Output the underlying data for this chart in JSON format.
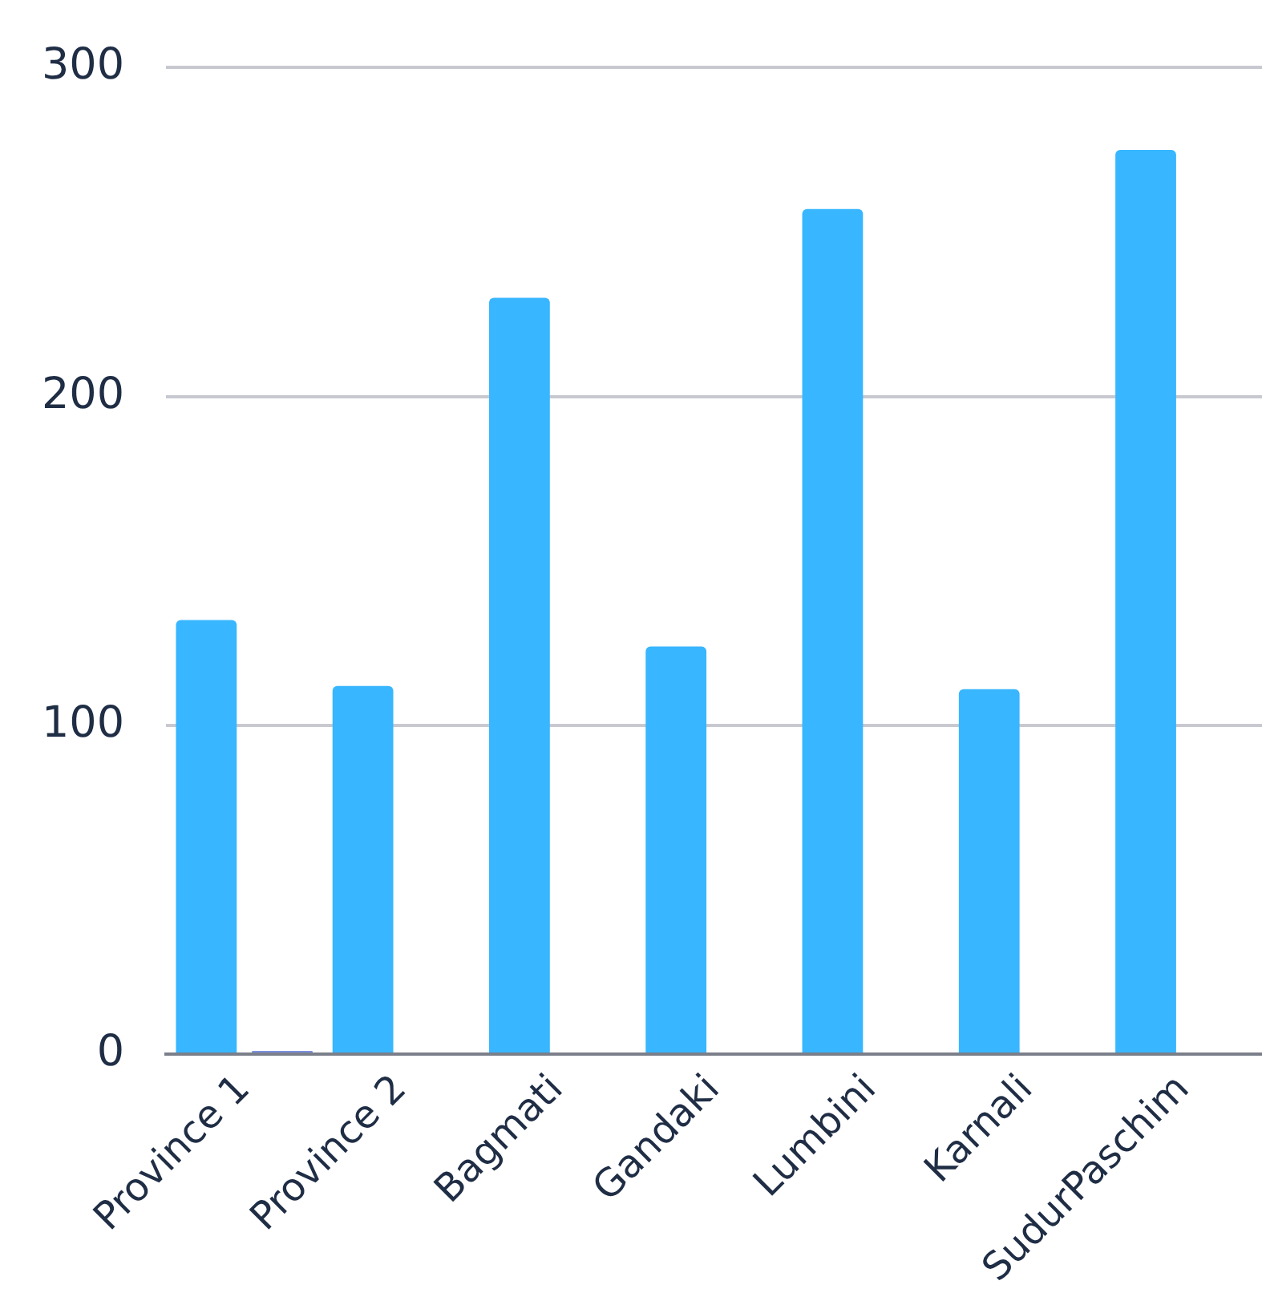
{
  "chart_data": {
    "type": "bar",
    "categories": [
      "Province 1",
      "Province 2",
      "Bagmati",
      "Gandaki",
      "Lumbini",
      "Karnali",
      "SudurPaschim"
    ],
    "series": [
      {
        "color": "#38b6ff",
        "values": [
          132,
          112,
          230,
          124,
          257,
          111,
          275
        ]
      },
      {
        "color": "#7b8fe0",
        "values": [
          1,
          0,
          0,
          0,
          0,
          0,
          0
        ]
      }
    ],
    "ylim": [
      0,
      300
    ],
    "yticks": [
      0,
      100,
      200,
      300
    ],
    "grid": "y",
    "legend": false
  }
}
